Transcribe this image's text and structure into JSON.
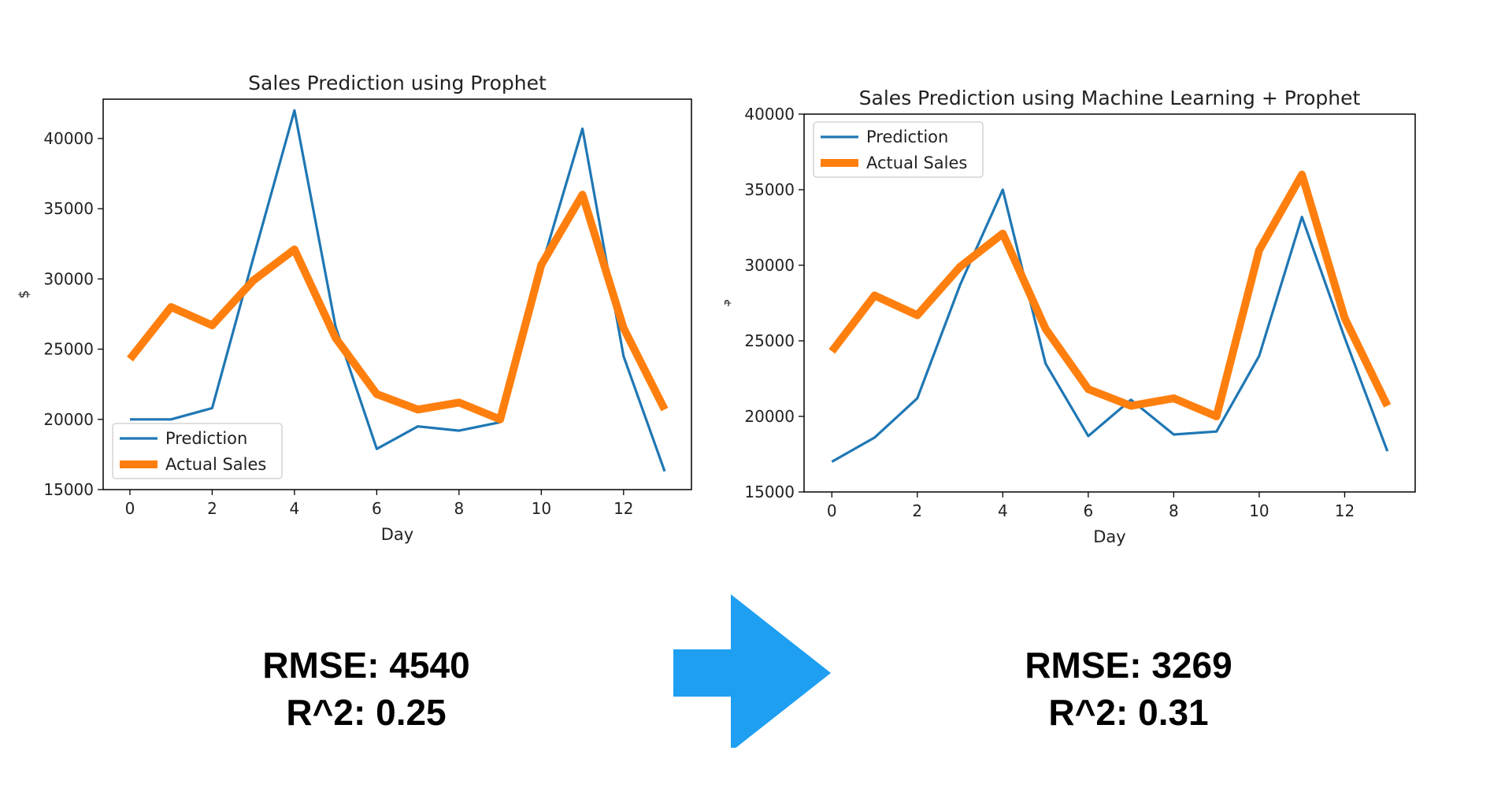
{
  "chart_data": [
    {
      "type": "line",
      "title": "Sales Prediction using Prophet",
      "xlabel": "Day",
      "ylabel": "$",
      "xlim": [
        -0.65,
        13.65
      ],
      "ylim": [
        15000,
        42800
      ],
      "xticks": [
        0,
        2,
        4,
        6,
        8,
        10,
        12
      ],
      "yticks": [
        15000,
        20000,
        25000,
        30000,
        35000,
        40000
      ],
      "legend_position": "lower-left",
      "x": [
        0,
        1,
        2,
        3,
        4,
        5,
        6,
        7,
        8,
        9,
        10,
        11,
        12,
        13
      ],
      "series": [
        {
          "name": "Prediction",
          "color": "#1f77b4",
          "values": [
            20000,
            20000,
            20800,
            31500,
            42000,
            26600,
            17900,
            19500,
            19200,
            19800,
            30800,
            40700,
            24500,
            16300
          ]
        },
        {
          "name": "Actual Sales",
          "color": "#ff7f0e",
          "values": [
            24300,
            28000,
            26700,
            29900,
            32100,
            25800,
            21800,
            20700,
            21200,
            20000,
            31000,
            36000,
            26500,
            20700
          ]
        }
      ]
    },
    {
      "type": "line",
      "title": "Sales Prediction using Machine Learning + Prophet",
      "xlabel": "Day",
      "ylabel": "$",
      "xlim": [
        -0.65,
        13.65
      ],
      "ylim": [
        15000,
        40000
      ],
      "xticks": [
        0,
        2,
        4,
        6,
        8,
        10,
        12
      ],
      "yticks": [
        15000,
        20000,
        25000,
        30000,
        35000,
        40000
      ],
      "legend_position": "upper-left",
      "x": [
        0,
        1,
        2,
        3,
        4,
        5,
        6,
        7,
        8,
        9,
        10,
        11,
        12,
        13
      ],
      "series": [
        {
          "name": "Prediction",
          "color": "#1f77b4",
          "values": [
            17000,
            18600,
            21200,
            28700,
            35000,
            23500,
            18700,
            21100,
            18800,
            19000,
            24000,
            33200,
            25200,
            17700
          ]
        },
        {
          "name": "Actual Sales",
          "color": "#ff7f0e",
          "values": [
            24300,
            28000,
            26700,
            29900,
            32100,
            25800,
            21800,
            20700,
            21200,
            20000,
            31000,
            36000,
            26500,
            20700
          ]
        }
      ]
    }
  ],
  "metrics": {
    "left": {
      "rmse": "RMSE:  4540",
      "r2": "R^2: 0.25"
    },
    "right": {
      "rmse": "RMSE:  3269",
      "r2": "R^2: 0.31"
    }
  },
  "arrow": {
    "icon": "right-arrow-icon",
    "color": "#1e9ff2"
  }
}
